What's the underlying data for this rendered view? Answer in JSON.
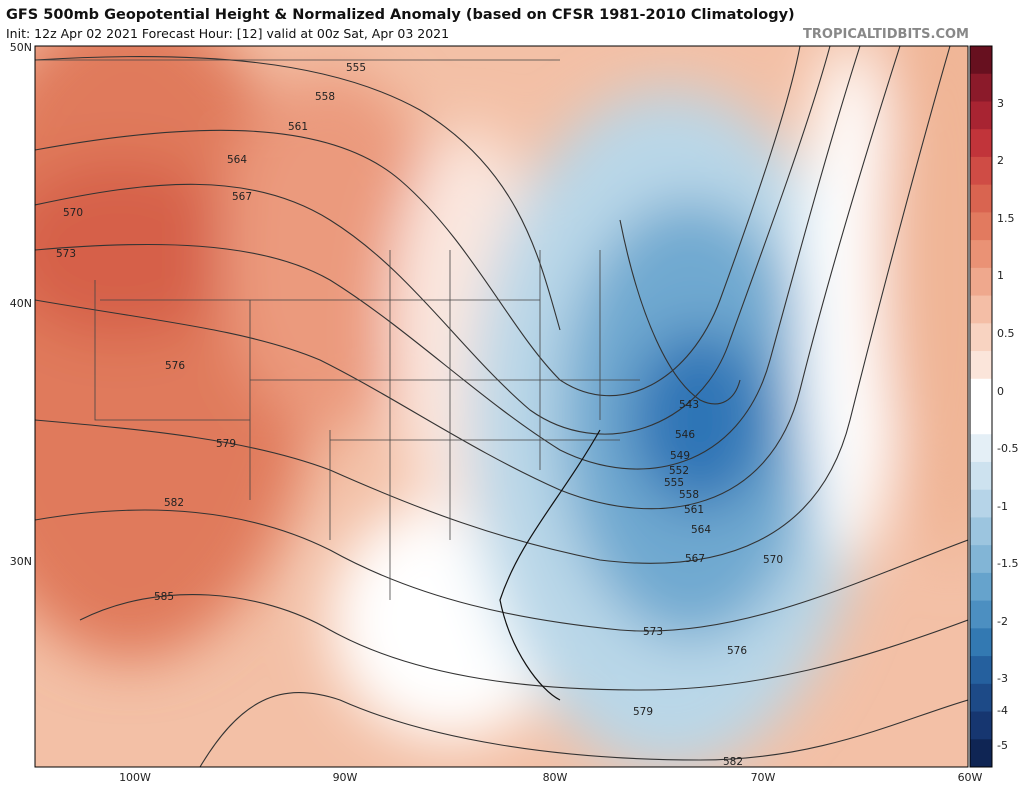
{
  "header": {
    "title": "GFS 500mb Geopotential Height & Normalized Anomaly (based on CFSR 1981-2010 Climatology)",
    "subtitle": "Init: 12z Apr 02 2021   Forecast Hour: [12]   valid at 00z Sat, Apr 03 2021",
    "site": "TROPICALTIDBITS.COM"
  },
  "map": {
    "lat_labels": [
      "50N",
      "40N",
      "30N"
    ],
    "lon_labels": [
      "100W",
      "90W",
      "80W",
      "70W",
      "60W"
    ],
    "contour_labels": [
      "555",
      "558",
      "561",
      "564",
      "567",
      "570",
      "573",
      "576",
      "579",
      "582",
      "585",
      "543",
      "546",
      "549",
      "552",
      "555",
      "558",
      "561",
      "564",
      "567",
      "570",
      "573",
      "576",
      "579",
      "582"
    ]
  },
  "colorbar": {
    "labels": [
      "3",
      "2",
      "1.5",
      "1",
      "0.5",
      "0",
      "-0.5",
      "-1",
      "-1.5",
      "-2",
      "-3",
      "-4",
      "-5"
    ]
  }
}
